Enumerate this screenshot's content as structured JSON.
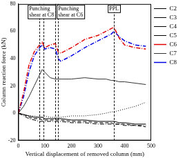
{
  "chart_data": {
    "type": "line",
    "x_label": "Vertical displacement of removed column (mm)",
    "y_label": "Column reaction force (kN)",
    "x": [
      0,
      20,
      40,
      60,
      80,
      90,
      100,
      120,
      140,
      150,
      160,
      200,
      250,
      300,
      330,
      350,
      360,
      380,
      400,
      440,
      480
    ],
    "series": [
      {
        "name": "C2",
        "color": "#000000",
        "line_style": "solid",
        "values": [
          0,
          -1,
          -2,
          -3,
          -3,
          -3,
          -4,
          -4,
          -4,
          -4,
          -4,
          -5,
          -5,
          -6,
          -6,
          -6,
          -6,
          -7,
          -7,
          -8,
          -8
        ]
      },
      {
        "name": "C3",
        "color": "#000000",
        "line_style": "dotted",
        "values": [
          0,
          -1,
          -2,
          -2,
          -3,
          -3,
          -2,
          -3,
          -3,
          -3,
          -3,
          -2,
          -2,
          -1,
          0,
          1,
          1,
          2,
          3,
          5,
          8
        ]
      },
      {
        "name": "C4",
        "color": "#000000",
        "line_style": "dashed",
        "values": [
          0,
          -1,
          -3,
          -4,
          -4,
          -5,
          -5,
          -5,
          -5,
          -5,
          -5,
          -6,
          -6,
          -7,
          -7,
          -7,
          -8,
          -8,
          -8,
          -9,
          -10
        ]
      },
      {
        "name": "C5",
        "color": "#000000",
        "line_style": "dashdot",
        "values": [
          0,
          -2,
          -4,
          -5,
          -6,
          -6,
          -6,
          -6,
          -6,
          -6,
          -6,
          -7,
          -7,
          -8,
          -8,
          -8,
          -8,
          -8,
          -9,
          -9,
          -9
        ]
      },
      {
        "name": "C6",
        "color": "#e00000",
        "line_style": "dashdot",
        "values": [
          0,
          15,
          35,
          45,
          50,
          52,
          48,
          50,
          51,
          45,
          44,
          48,
          54,
          57,
          60,
          62,
          63,
          55,
          50,
          48,
          47
        ]
      },
      {
        "name": "C7",
        "color": "#333333",
        "line_style": "solid",
        "values": [
          0,
          5,
          12,
          20,
          28,
          32,
          30,
          26,
          25,
          25,
          25,
          25,
          26,
          25,
          25,
          24,
          24,
          23,
          23,
          22,
          21
        ]
      },
      {
        "name": "C8",
        "color": "#0000e0",
        "line_style": "dashdot",
        "values": [
          0,
          12,
          30,
          42,
          48,
          50,
          47,
          48,
          47,
          40,
          38,
          42,
          48,
          53,
          56,
          58,
          60,
          56,
          53,
          50,
          49
        ]
      }
    ],
    "annotations": [
      {
        "text": "Punching shear at C8",
        "x": [
          80,
          95
        ]
      },
      {
        "text": "Punching shear at C6",
        "x": [
          140,
          150
        ]
      },
      {
        "text": "PPL",
        "x": [
          360
        ]
      }
    ],
    "xlim": [
      0,
      500
    ],
    "xticks": [
      0,
      100,
      200,
      300,
      400,
      500
    ],
    "ylim": [
      -20,
      80
    ],
    "yticks": [
      -20,
      0,
      20,
      40,
      60,
      80
    ],
    "grid": false,
    "legend": "upper right"
  }
}
